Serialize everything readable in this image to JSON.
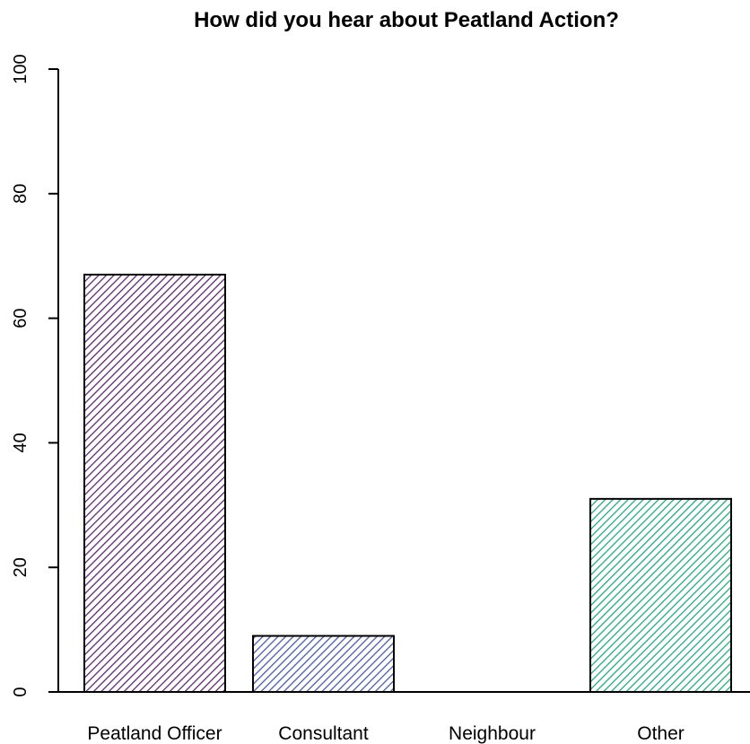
{
  "chart_data": {
    "type": "bar",
    "title": "How did you hear about Peatland Action?",
    "xlabel": "",
    "ylabel": "",
    "categories": [
      "Peatland Officer",
      "Consultant",
      "Neighbour",
      "Other"
    ],
    "values": [
      67,
      9,
      0,
      31
    ],
    "ylim": [
      0,
      100
    ],
    "yticks": [
      0,
      20,
      40,
      60,
      80,
      100
    ],
    "ytick_labels": [
      "0",
      "20",
      "40",
      "60",
      "80",
      "100"
    ],
    "bar_colors": [
      "#5a2a6e",
      "#4d5ba3",
      "#3a8fa8",
      "#27a87a"
    ],
    "fill_pattern": "diagonal-hatch",
    "grid": false,
    "legend": "none"
  }
}
